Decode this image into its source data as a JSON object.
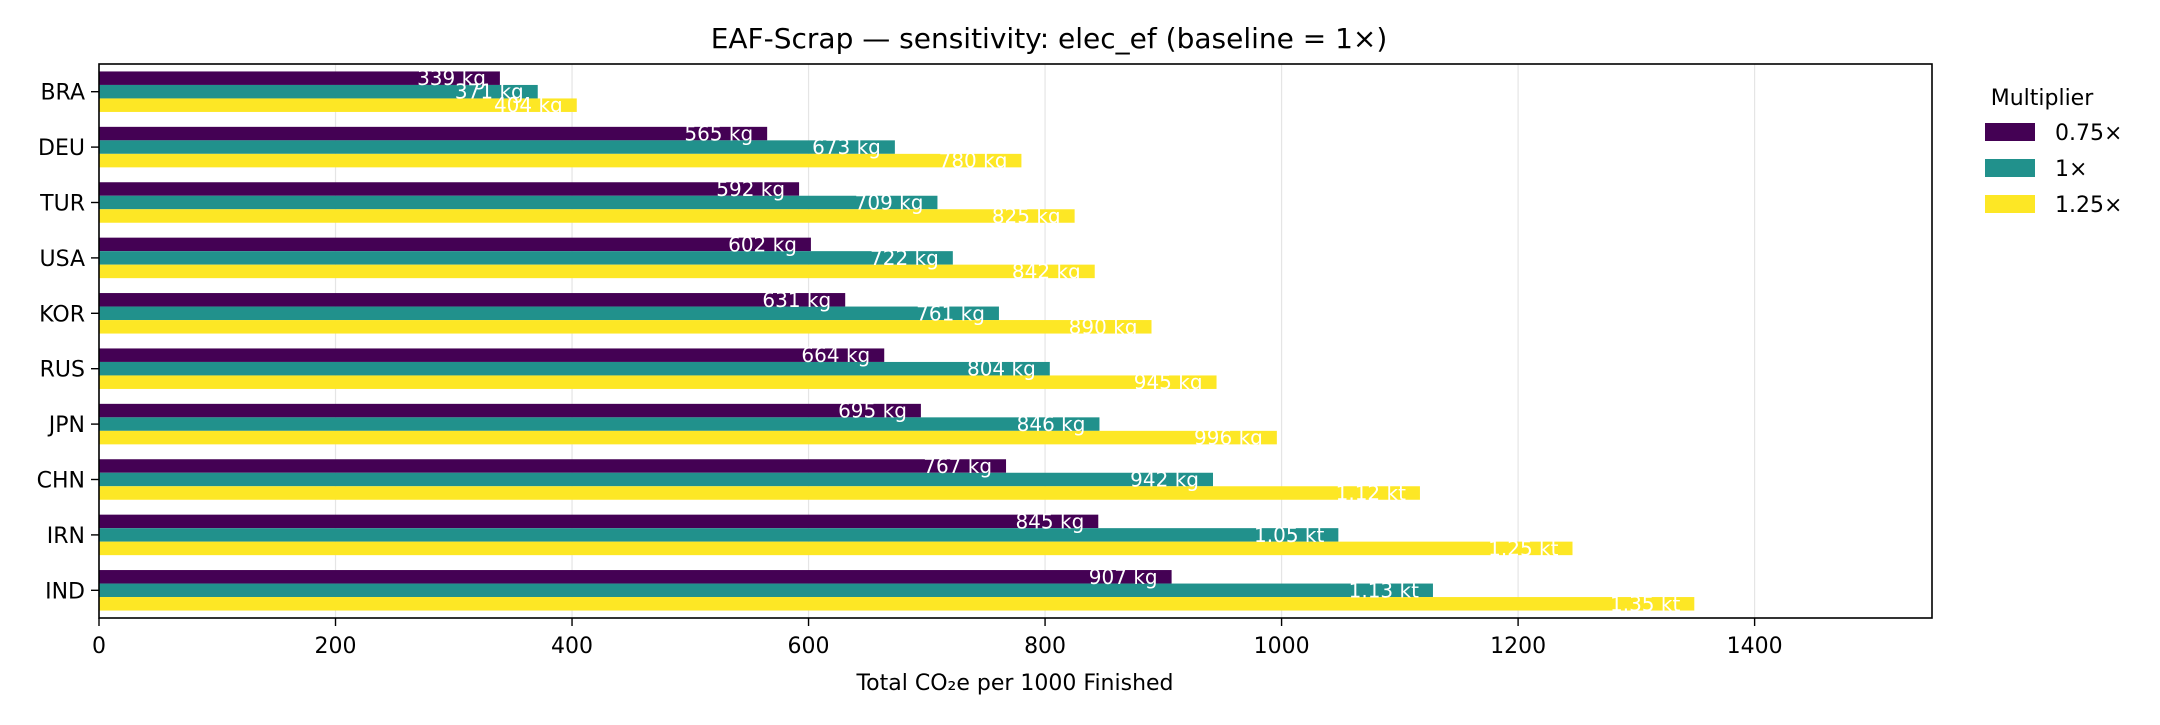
{
  "chart_data": {
    "type": "bar",
    "orientation": "horizontal",
    "title": "EAF-Scrap — sensitivity: elec_ef (baseline = 1×)",
    "xlabel": "Total CO₂e per 1000 Finished",
    "ylabel": "",
    "xlim": [
      0,
      1550
    ],
    "xticks": [
      "0",
      "200",
      "400",
      "600",
      "800",
      "1000",
      "1200",
      "1400"
    ],
    "grid": "vertical",
    "legend": {
      "title": "Multiplier",
      "placement": "outside-right"
    },
    "categories": [
      "BRA",
      "DEU",
      "TUR",
      "USA",
      "KOR",
      "RUS",
      "JPN",
      "CHN",
      "IRN",
      "IND"
    ],
    "series": [
      {
        "name": "0.75×",
        "color": "#440154",
        "values": [
          339,
          565,
          592,
          602,
          631,
          664,
          695,
          767,
          845,
          907
        ],
        "labels": [
          "339 kg",
          "565 kg",
          "592 kg",
          "602 kg",
          "631 kg",
          "664 kg",
          "695 kg",
          "767 kg",
          "845 kg",
          "907 kg"
        ]
      },
      {
        "name": "1×",
        "color": "#21918c",
        "values": [
          371,
          673,
          709,
          722,
          761,
          804,
          846,
          942,
          1048,
          1128
        ],
        "labels": [
          "371 kg",
          "673 kg",
          "709 kg",
          "722 kg",
          "761 kg",
          "804 kg",
          "846 kg",
          "942 kg",
          "1.05 kt",
          "1.13 kt"
        ]
      },
      {
        "name": "1.25×",
        "color": "#fde725",
        "values": [
          404,
          780,
          825,
          842,
          890,
          945,
          996,
          1117,
          1246,
          1349
        ],
        "labels": [
          "404 kg",
          "780 kg",
          "825 kg",
          "842 kg",
          "890 kg",
          "945 kg",
          "996 kg",
          "1.12 kt",
          "1.25 kt",
          "1.35 kt"
        ]
      }
    ]
  }
}
